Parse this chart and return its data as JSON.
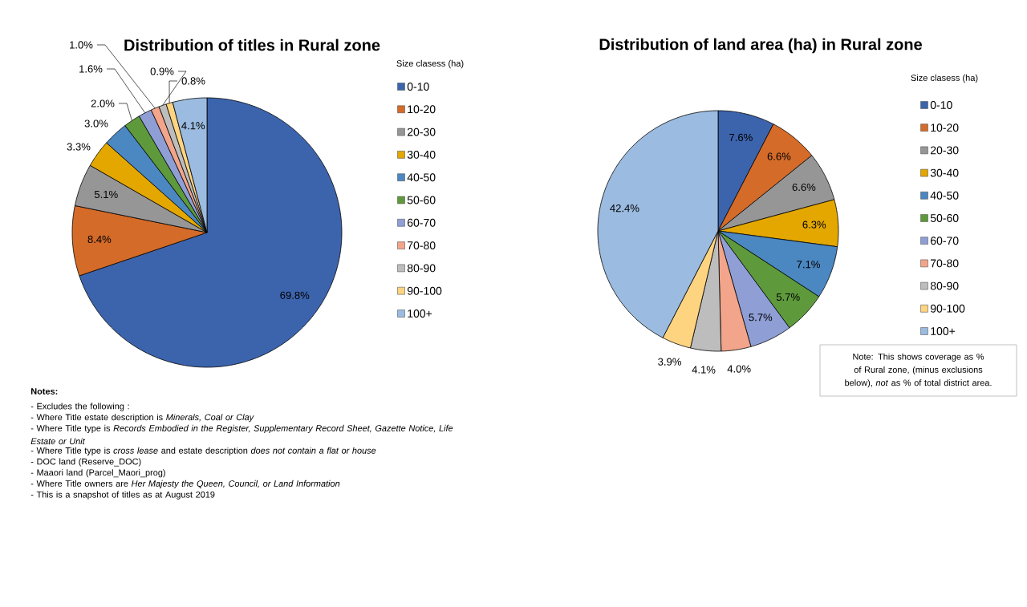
{
  "chart_data": [
    {
      "type": "pie",
      "title": "Distribution of titles in Rural zone",
      "legend_title": "Size clasess (ha)",
      "legend": "right",
      "categories": [
        "0-10",
        "10-20",
        "20-30",
        "30-40",
        "40-50",
        "50-60",
        "60-70",
        "70-80",
        "80-90",
        "90-100",
        "100+"
      ],
      "values": [
        69.8,
        8.4,
        5.1,
        3.3,
        3.0,
        2.0,
        1.6,
        1.0,
        0.9,
        0.8,
        4.1
      ],
      "value_labels": [
        "69.8%",
        "8.4%",
        "5.1%",
        "3.3%",
        "3.0%",
        "2.0%",
        "1.6%",
        "1.0%",
        "0.9%",
        "0.8%",
        "4.1%"
      ],
      "colors": [
        "#3c64ad",
        "#d46b29",
        "#969696",
        "#e3a700",
        "#4b87c1",
        "#5e9a3c",
        "#8f9fd6",
        "#f2a58a",
        "#bdbdbd",
        "#ffd480",
        "#9bbbe0"
      ],
      "annotations": [
        "Notes:",
        "- Excludes the following :",
        "- Where Title estate description is *Minerals, Coal or Clay*",
        "- Where Title type is *Records Embodied in the Register, Supplementary Record Sheet, Gazette Notice, Life Estate or Unit*",
        "- Where Title type is *cross lease* and estate description *does not contain a flat or house*",
        "- DOC land (Reserve_DOC)",
        "- Maaori land (Parcel_Maori_prog)",
        "- Where Title owners are *Her Majesty the Queen, Council, or Land Information*",
        "- This is a snapshot of titles as at August 2019"
      ]
    },
    {
      "type": "pie",
      "title": "Distribution of land area (ha) in Rural zone",
      "legend_title": "Size clasess (ha)",
      "legend": "right",
      "categories": [
        "0-10",
        "10-20",
        "20-30",
        "30-40",
        "40-50",
        "50-60",
        "60-70",
        "70-80",
        "80-90",
        "90-100",
        "100+"
      ],
      "values": [
        7.6,
        6.6,
        6.6,
        6.3,
        7.1,
        5.7,
        5.7,
        4.0,
        4.1,
        3.9,
        42.4
      ],
      "value_labels": [
        "7.6%",
        "6.6%",
        "6.6%",
        "6.3%",
        "7.1%",
        "5.7%",
        "5.7%",
        "4.0%",
        "4.1%",
        "3.9%",
        "42.4%"
      ],
      "colors": [
        "#3c64ad",
        "#d46b29",
        "#969696",
        "#e3a700",
        "#4b87c1",
        "#5e9a3c",
        "#8f9fd6",
        "#f2a58a",
        "#bdbdbd",
        "#ffd480",
        "#9bbbe0"
      ],
      "annotations": [
        "Note: This shows coverage as  % of Rural zone, (minus exclusions below), *not* as % of total  district area."
      ]
    }
  ]
}
